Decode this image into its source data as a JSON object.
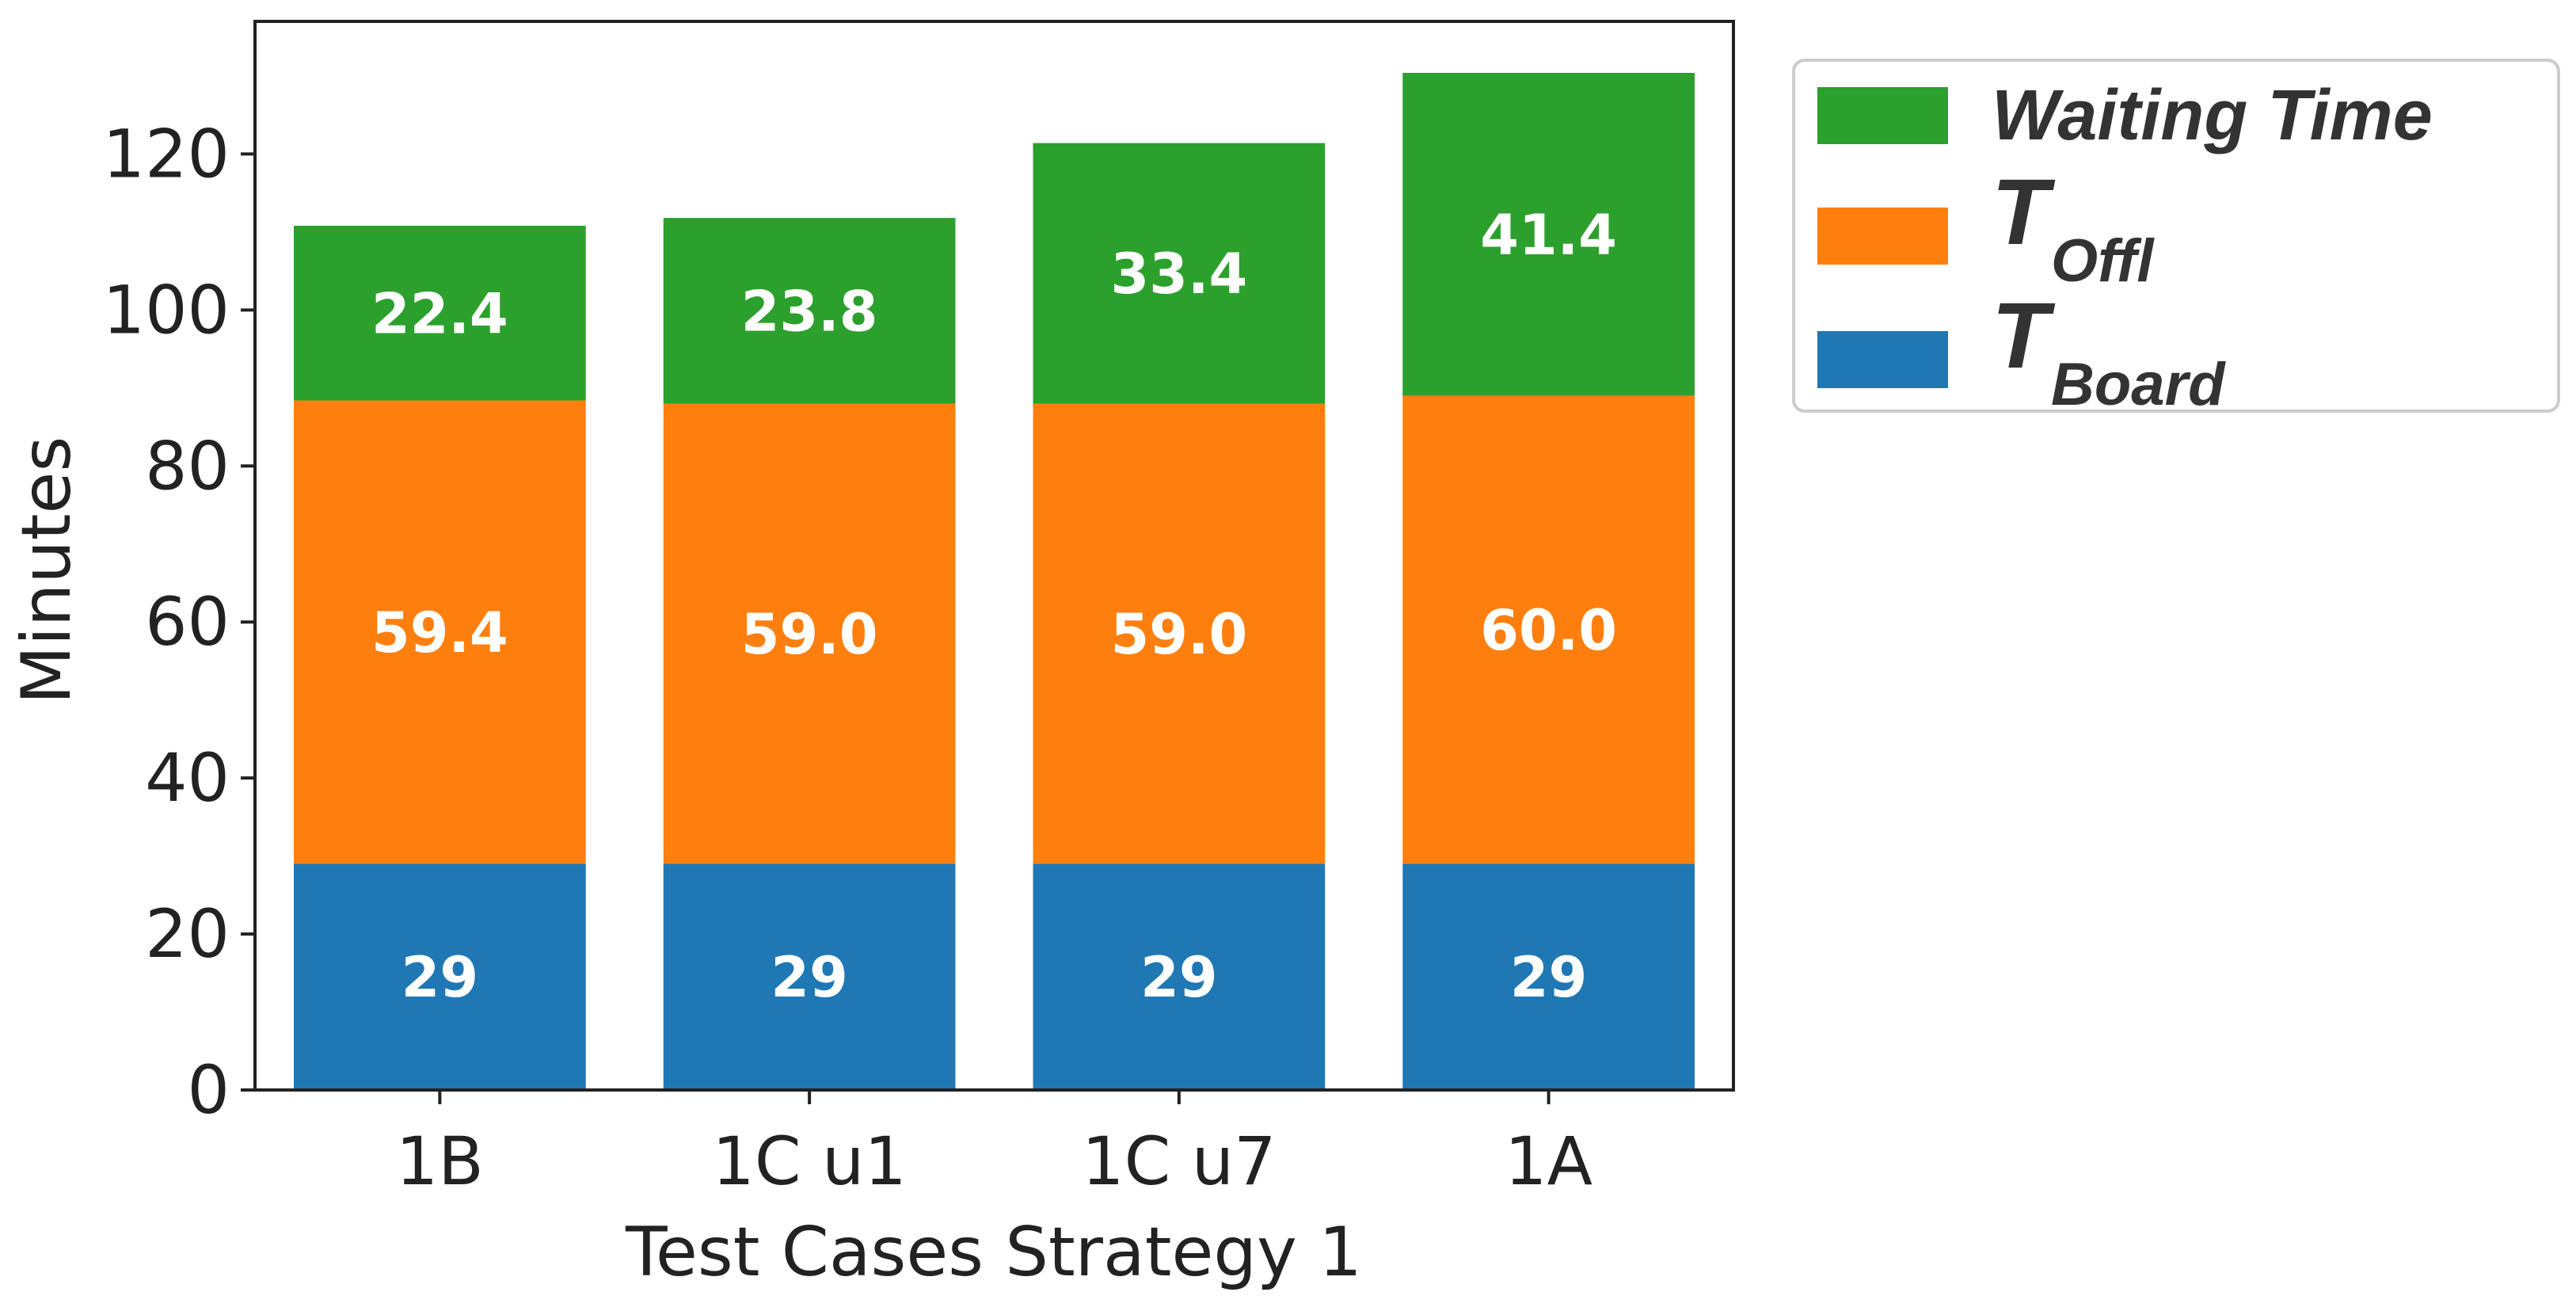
{
  "chart_data": {
    "type": "bar",
    "stacked": true,
    "categories": [
      "1B",
      "1C u1",
      "1C u7",
      "1A"
    ],
    "series": [
      {
        "name": "T",
        "subscript": "Board",
        "color": "#1f77b4",
        "values": [
          29,
          29,
          29,
          29
        ],
        "labels": [
          "29",
          "29",
          "29",
          "29"
        ]
      },
      {
        "name": "T",
        "subscript": "Offl",
        "color": "#ff7f0e",
        "values": [
          59.4,
          59.0,
          59.0,
          60.0
        ],
        "labels": [
          "59.4",
          "59.0",
          "59.0",
          "60.0"
        ]
      },
      {
        "name": "Waiting Time",
        "subscript": "",
        "color": "#2ca02c",
        "values": [
          22.4,
          23.8,
          33.4,
          41.4
        ],
        "labels": [
          "22.4",
          "23.8",
          "33.4",
          "41.4"
        ]
      }
    ],
    "legend_order": [
      2,
      1,
      0
    ],
    "title": "",
    "xlabel": "Test Cases Strategy 1",
    "ylabel": "Minutes",
    "yticks": [
      0,
      20,
      40,
      60,
      80,
      100,
      120
    ],
    "ytick_labels": [
      "0",
      "20",
      "40",
      "60",
      "80",
      "100",
      "120"
    ],
    "ylim": [
      0,
      137
    ],
    "grid": false,
    "legend_position": "outside-top-right"
  }
}
